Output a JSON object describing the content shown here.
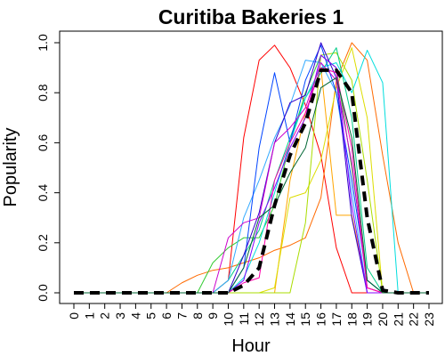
{
  "chart_data": {
    "type": "line",
    "title": "Curitiba Bakeries 1",
    "xlabel": "Hour",
    "ylabel": "Popularity",
    "x": [
      0,
      1,
      2,
      3,
      4,
      5,
      6,
      7,
      8,
      9,
      10,
      11,
      12,
      13,
      14,
      15,
      16,
      17,
      18,
      19,
      20,
      21,
      22,
      23
    ],
    "x_tick_labels": [
      "0",
      "1",
      "2",
      "3",
      "4",
      "5",
      "6",
      "7",
      "8",
      "9",
      "10",
      "11",
      "12",
      "13",
      "14",
      "15",
      "16",
      "17",
      "18",
      "19",
      "20",
      "21",
      "22",
      "23"
    ],
    "ylim": [
      0,
      1
    ],
    "y_ticks": [
      0,
      0.2,
      0.4,
      0.6,
      0.8,
      1
    ],
    "y_tick_labels": [
      "0.0",
      "0.2",
      "0.4",
      "0.6",
      "0.8",
      "1.0"
    ],
    "grid": false,
    "legend": "none",
    "series": [
      {
        "color": "#ff0000",
        "values": [
          0,
          0,
          0,
          0,
          0,
          0,
          0,
          0,
          0,
          0,
          0.05,
          0.62,
          0.93,
          0.99,
          0.9,
          0.75,
          0.55,
          0.18,
          0,
          0,
          0,
          0,
          0,
          0
        ]
      },
      {
        "color": "#ff6a00",
        "values": [
          0,
          0,
          0,
          0,
          0,
          0,
          0,
          0.04,
          0.07,
          0.09,
          0.1,
          0.12,
          0.14,
          0.17,
          0.19,
          0.22,
          0.38,
          0.85,
          1.0,
          0.93,
          0.55,
          0.2,
          0,
          0
        ]
      },
      {
        "color": "#ffa500",
        "values": [
          0,
          0,
          0,
          0,
          0,
          0,
          0,
          0,
          0,
          0,
          0,
          0,
          0,
          0,
          0.45,
          0.72,
          0.9,
          0.31,
          0.31,
          0.02,
          0,
          0,
          0,
          0
        ]
      },
      {
        "color": "#dddd00",
        "values": [
          0,
          0,
          0,
          0,
          0,
          0,
          0,
          0,
          0,
          0,
          0,
          0,
          0,
          0.02,
          0.38,
          0.4,
          0.53,
          0.82,
          0.98,
          0.7,
          0,
          0,
          0,
          0
        ]
      },
      {
        "color": "#aadd00",
        "values": [
          0,
          0,
          0,
          0,
          0,
          0,
          0,
          0,
          0,
          0,
          0,
          0,
          0,
          0,
          0,
          0.28,
          0.95,
          0.96,
          0.85,
          0.45,
          0,
          0,
          0,
          0
        ]
      },
      {
        "color": "#33cc33",
        "values": [
          0,
          0,
          0,
          0,
          0,
          0,
          0,
          0,
          0,
          0.12,
          0.18,
          0.22,
          0.22,
          0.35,
          0.6,
          0.8,
          0.95,
          0.9,
          0.5,
          0.05,
          0,
          0,
          0,
          0
        ]
      },
      {
        "color": "#00cc88",
        "values": [
          0,
          0,
          0,
          0,
          0,
          0,
          0,
          0,
          0,
          0,
          0.05,
          0.15,
          0.25,
          0.45,
          0.62,
          0.78,
          0.88,
          0.98,
          0.7,
          0.1,
          0,
          0,
          0,
          0
        ]
      },
      {
        "color": "#00dddd",
        "values": [
          0,
          0,
          0,
          0,
          0,
          0,
          0,
          0,
          0,
          0,
          0,
          0.06,
          0.2,
          0.4,
          0.6,
          0.78,
          0.9,
          0.92,
          0.8,
          0.97,
          0.84,
          0,
          0,
          0
        ]
      },
      {
        "color": "#33aaff",
        "values": [
          0,
          0,
          0,
          0,
          0,
          0,
          0,
          0,
          0,
          0,
          0.05,
          0.3,
          0.45,
          0.62,
          0.75,
          0.93,
          0.92,
          0.8,
          0.4,
          0,
          0,
          0,
          0,
          0
        ]
      },
      {
        "color": "#0044ff",
        "values": [
          0,
          0,
          0,
          0,
          0,
          0,
          0,
          0,
          0,
          0,
          0,
          0.1,
          0.58,
          0.88,
          0.6,
          0.85,
          0.99,
          0.8,
          0.45,
          0.05,
          0,
          0,
          0,
          0
        ]
      },
      {
        "color": "#3300cc",
        "values": [
          0,
          0,
          0,
          0,
          0,
          0,
          0,
          0,
          0,
          0,
          0,
          0.15,
          0.32,
          0.6,
          0.76,
          0.79,
          1.0,
          0.86,
          0.3,
          0,
          0,
          0,
          0,
          0
        ]
      },
      {
        "color": "#8800ff",
        "values": [
          0,
          0,
          0,
          0,
          0,
          0,
          0,
          0,
          0,
          0,
          0,
          0.05,
          0.28,
          0.42,
          0.58,
          0.7,
          0.95,
          0.9,
          0.35,
          0,
          0,
          0,
          0,
          0
        ]
      },
      {
        "color": "#cc00cc",
        "values": [
          0,
          0,
          0,
          0,
          0,
          0,
          0,
          0,
          0,
          0,
          0.22,
          0.28,
          0.3,
          0.6,
          0.66,
          0.74,
          0.92,
          0.85,
          0.52,
          0.02,
          0,
          0,
          0,
          0
        ]
      },
      {
        "color": "#ff00aa",
        "values": [
          0,
          0,
          0,
          0,
          0,
          0,
          0,
          0,
          0,
          0,
          0,
          0.04,
          0.06,
          0.45,
          0.6,
          0.72,
          0.9,
          0.88,
          0.58,
          0.02,
          0,
          0,
          0,
          0
        ]
      },
      {
        "color": "#006633",
        "values": [
          0,
          0,
          0,
          0,
          0,
          0,
          0,
          0,
          0,
          0,
          0,
          0.1,
          0.3,
          0.35,
          0.48,
          0.58,
          0.82,
          0.86,
          0.62,
          0.05,
          0,
          0,
          0,
          0
        ]
      },
      {
        "color": "#000000",
        "dashed": true,
        "values": [
          0,
          0,
          0,
          0,
          0,
          0,
          0,
          0,
          0,
          0,
          0,
          0.03,
          0.1,
          0.35,
          0.55,
          0.68,
          0.89,
          0.89,
          0.8,
          0.3,
          0.01,
          0,
          0,
          0
        ]
      }
    ]
  }
}
